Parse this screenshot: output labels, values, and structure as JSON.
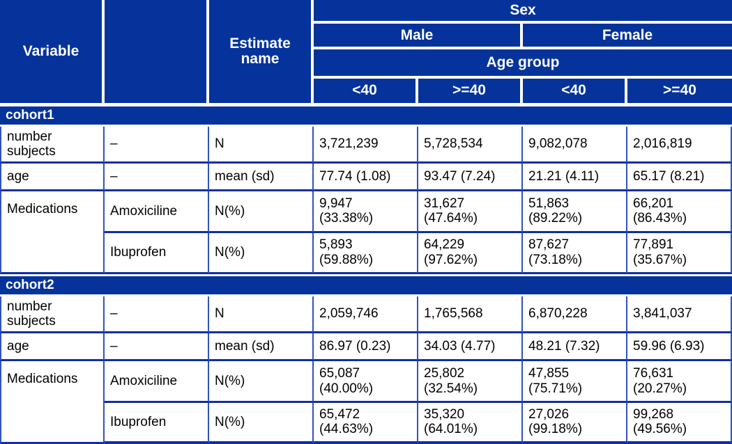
{
  "chart_data": {
    "type": "table",
    "colors": {
      "header_bg": "#05339b",
      "grid_vertical": "#2f52c0",
      "grid_horizontal": "#0f2fa0",
      "header_text": "#ffffff",
      "body_text": "#000000"
    },
    "header": {
      "variable": "Variable",
      "blank": "",
      "estimate_name": "Estimate\nname",
      "sex": "Sex",
      "male": "Male",
      "female": "Female",
      "age_group": "Age group",
      "age_cols": [
        "<40",
        ">=40",
        "<40",
        ">=40"
      ]
    },
    "sections": [
      {
        "label": "cohort1",
        "rows": [
          {
            "variable": "number\nsubjects",
            "level": "–",
            "estimate": "N",
            "values": [
              "3,721,239",
              "5,728,534",
              "9,082,078",
              "2,016,819"
            ]
          },
          {
            "variable": "age",
            "level": "–",
            "estimate": "mean (sd)",
            "values": [
              "77.74 (1.08)",
              "93.47 (7.24)",
              "21.21 (4.11)",
              "65.17 (8.21)"
            ]
          },
          {
            "variable": "Medications",
            "level": "Amoxiciline",
            "estimate": "N(%)",
            "values": [
              "9,947\n(33.38%)",
              "31,627\n(47.64%)",
              "51,863\n(89.22%)",
              "66,201\n(86.43%)"
            ]
          },
          {
            "variable": "",
            "level": "Ibuprofen",
            "estimate": "N(%)",
            "values": [
              "5,893\n(59.88%)",
              "64,229\n(97.62%)",
              "87,627\n(73.18%)",
              "77,891\n(35.67%)"
            ]
          }
        ]
      },
      {
        "label": "cohort2",
        "rows": [
          {
            "variable": "number\nsubjects",
            "level": "–",
            "estimate": "N",
            "values": [
              "2,059,746",
              "1,765,568",
              "6,870,228",
              "3,841,037"
            ]
          },
          {
            "variable": "age",
            "level": "–",
            "estimate": "mean (sd)",
            "values": [
              "86.97 (0.23)",
              "34.03 (4.77)",
              "48.21 (7.32)",
              "59.96 (6.93)"
            ]
          },
          {
            "variable": "Medications",
            "level": "Amoxiciline",
            "estimate": "N(%)",
            "values": [
              "65,087\n(40.00%)",
              "25,802\n(32.54%)",
              "47,855\n(75.71%)",
              "76,631\n(20.27%)"
            ]
          },
          {
            "variable": "",
            "level": "Ibuprofen",
            "estimate": "N(%)",
            "values": [
              "65,472\n(44.63%)",
              "35,320\n(64.01%)",
              "27,026\n(99.18%)",
              "99,268\n(49.56%)"
            ]
          }
        ]
      }
    ]
  }
}
